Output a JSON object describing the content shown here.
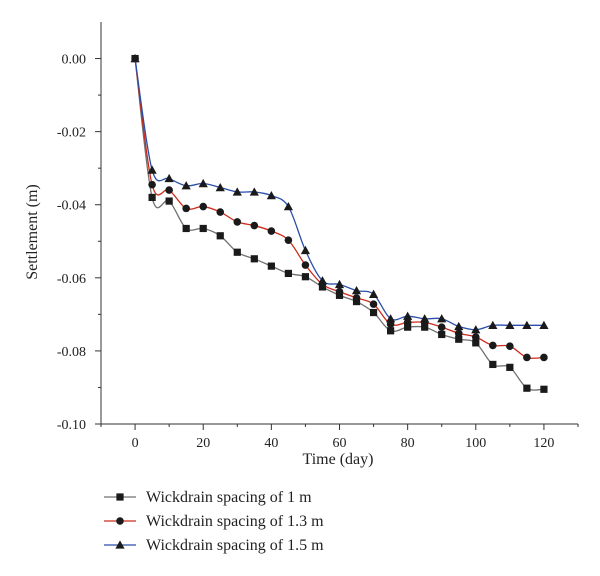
{
  "chart_data": {
    "type": "line",
    "xlabel": "Time (day)",
    "ylabel": "Settlement (m)",
    "xlim": [
      -10,
      130
    ],
    "ylim": [
      -0.1,
      0.01
    ],
    "xticks": [
      0,
      20,
      40,
      60,
      80,
      100,
      120
    ],
    "xtick_labels": [
      "0",
      "20",
      "40",
      "60",
      "80",
      "100",
      "120"
    ],
    "yticks": [
      0.0,
      -0.02,
      -0.04,
      -0.06,
      -0.08,
      -0.1
    ],
    "ytick_labels": [
      "0.00",
      "-0.02",
      "-0.04",
      "-0.06",
      "-0.08",
      "-0.10"
    ],
    "grid": false,
    "legend_position": "bottom",
    "series": [
      {
        "name": "Wickdrain spacing of 1 m",
        "marker": "square",
        "color": "#707070",
        "marker_color": "#1a1a1a",
        "x": [
          0,
          5,
          10,
          15,
          20,
          25,
          30,
          35,
          40,
          45,
          50,
          55,
          60,
          65,
          70,
          75,
          80,
          85,
          90,
          95,
          100,
          105,
          110,
          115,
          120
        ],
        "y": [
          0,
          -0.038,
          -0.039,
          -0.0465,
          -0.0465,
          -0.0485,
          -0.053,
          -0.0548,
          -0.0568,
          -0.0588,
          -0.0597,
          -0.0625,
          -0.0648,
          -0.0665,
          -0.0695,
          -0.0745,
          -0.0735,
          -0.0735,
          -0.0755,
          -0.0768,
          -0.0778,
          -0.0837,
          -0.0845,
          -0.0902,
          -0.0905
        ]
      },
      {
        "name": "Wickdrain spacing of 1.3 m",
        "marker": "circle",
        "color": "#cc2a1a",
        "marker_color": "#1a1a1a",
        "x": [
          0,
          5,
          10,
          15,
          20,
          25,
          30,
          35,
          40,
          45,
          50,
          55,
          60,
          65,
          70,
          75,
          80,
          85,
          90,
          95,
          100,
          105,
          110,
          115,
          120
        ],
        "y": [
          0,
          -0.0345,
          -0.036,
          -0.041,
          -0.0405,
          -0.042,
          -0.0447,
          -0.0457,
          -0.0472,
          -0.0497,
          -0.0565,
          -0.0618,
          -0.0638,
          -0.0655,
          -0.0672,
          -0.0727,
          -0.0722,
          -0.0722,
          -0.0735,
          -0.0752,
          -0.0762,
          -0.0785,
          -0.0787,
          -0.0818,
          -0.0818
        ]
      },
      {
        "name": "Wickdrain spacing of 1.5 m",
        "marker": "triangle",
        "color": "#2a4fa8",
        "marker_color": "#1a1a1a",
        "x": [
          0,
          5,
          10,
          15,
          20,
          25,
          30,
          35,
          40,
          45,
          50,
          55,
          60,
          65,
          70,
          75,
          80,
          85,
          90,
          95,
          100,
          105,
          110,
          115,
          120
        ],
        "y": [
          0,
          -0.0305,
          -0.0328,
          -0.0348,
          -0.0342,
          -0.0353,
          -0.0365,
          -0.0365,
          -0.0375,
          -0.0405,
          -0.0525,
          -0.0608,
          -0.0618,
          -0.0635,
          -0.0645,
          -0.0712,
          -0.0705,
          -0.0712,
          -0.0712,
          -0.0733,
          -0.0742,
          -0.073,
          -0.073,
          -0.073,
          -0.073
        ]
      }
    ]
  }
}
